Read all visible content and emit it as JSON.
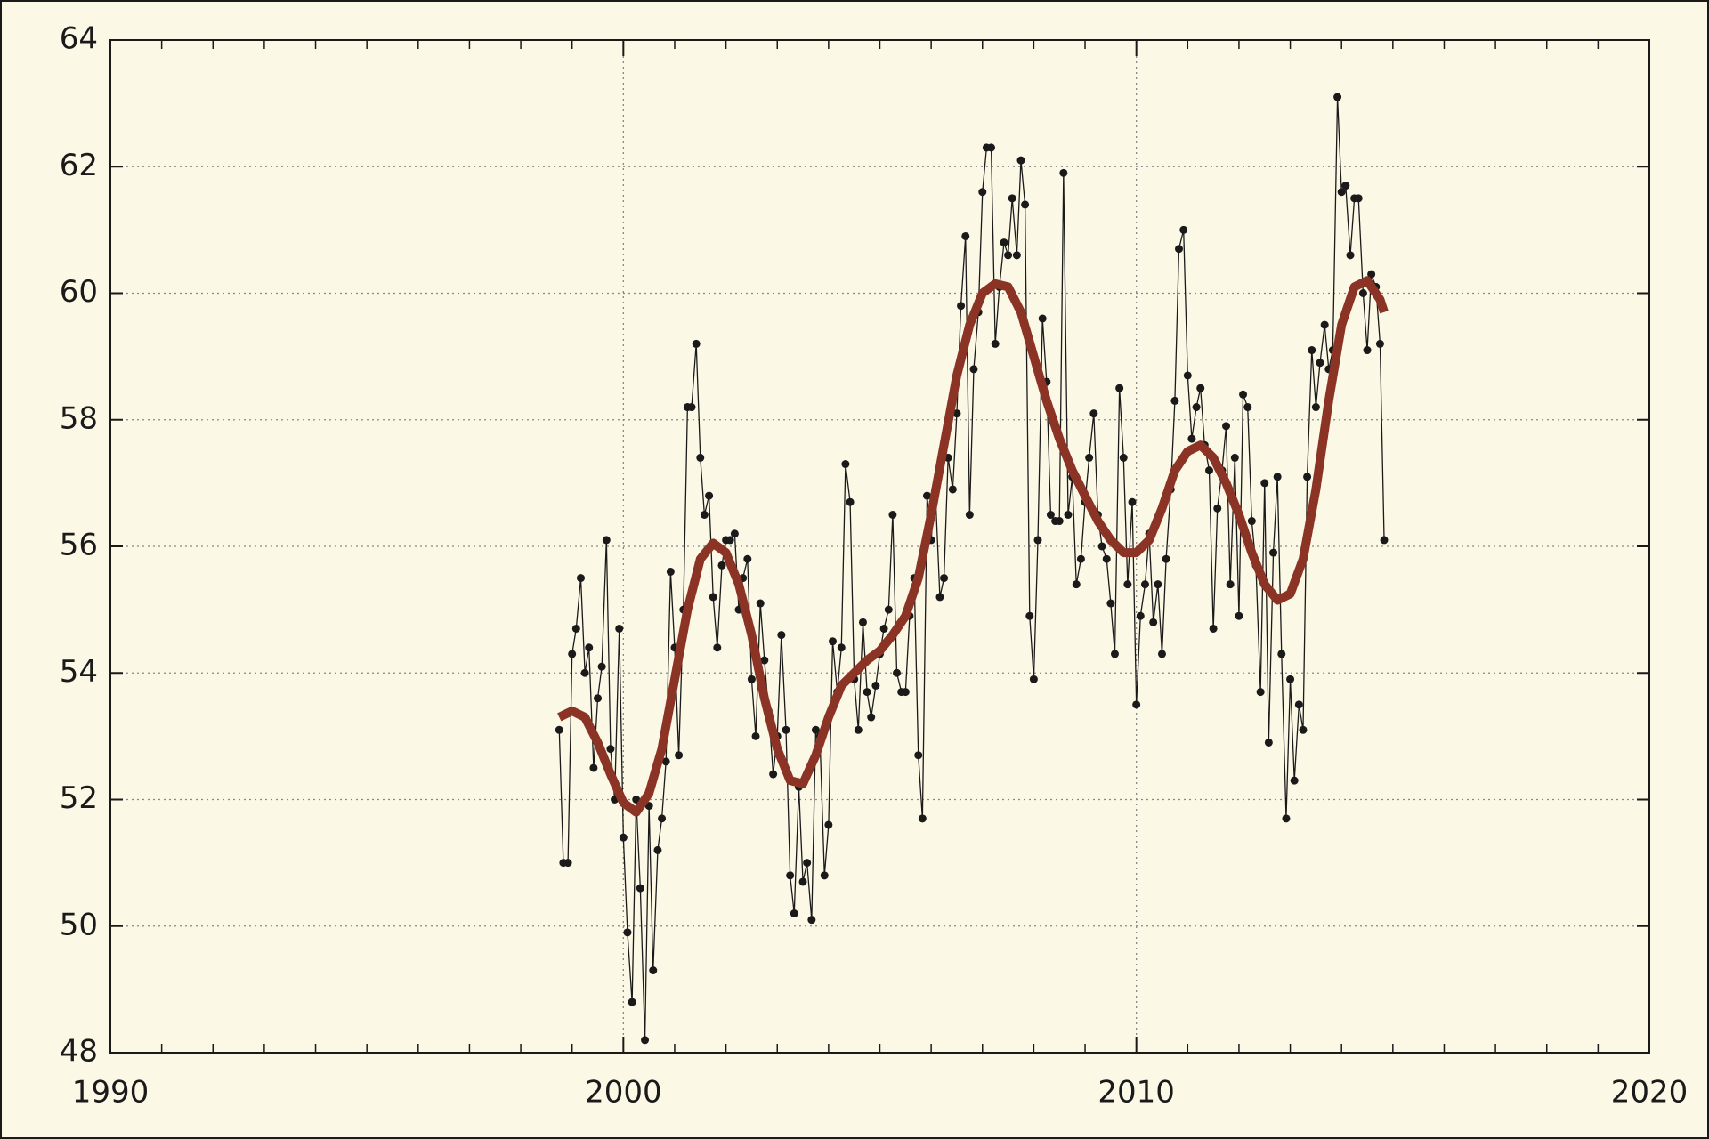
{
  "chart_data": {
    "type": "line",
    "xlim": [
      1990,
      2020
    ],
    "xticks": [
      1990,
      2000,
      2010,
      2020
    ],
    "xminorticks": [
      1991,
      1992,
      1993,
      1994,
      1995,
      1996,
      1997,
      1998,
      1999,
      2001,
      2002,
      2003,
      2004,
      2005,
      2006,
      2007,
      2008,
      2009,
      2011,
      2012,
      2013,
      2014,
      2015,
      2016,
      2017,
      2018,
      2019
    ],
    "ylim": [
      48,
      64
    ],
    "yticks": [
      48,
      50,
      52,
      54,
      56,
      58,
      60,
      62,
      64
    ],
    "grid": true,
    "background": "#fcf8e6",
    "series": [
      {
        "color": "#1a1a1a",
        "marker": "circle",
        "x": [
          1998.75,
          1998.83,
          1998.92,
          1999.0,
          1999.08,
          1999.17,
          1999.25,
          1999.33,
          1999.42,
          1999.5,
          1999.58,
          1999.67,
          1999.75,
          1999.83,
          1999.92,
          2000.0,
          2000.08,
          2000.17,
          2000.25,
          2000.33,
          2000.42,
          2000.5,
          2000.58,
          2000.67,
          2000.75,
          2000.83,
          2000.92,
          2001.0,
          2001.08,
          2001.17,
          2001.25,
          2001.33,
          2001.42,
          2001.5,
          2001.58,
          2001.67,
          2001.75,
          2001.83,
          2001.92,
          2002.0,
          2002.08,
          2002.17,
          2002.25,
          2002.33,
          2002.42,
          2002.5,
          2002.58,
          2002.67,
          2002.75,
          2002.83,
          2002.92,
          2003.0,
          2003.08,
          2003.17,
          2003.25,
          2003.33,
          2003.42,
          2003.5,
          2003.58,
          2003.67,
          2003.75,
          2003.83,
          2003.92,
          2004.0,
          2004.08,
          2004.17,
          2004.25,
          2004.33,
          2004.42,
          2004.5,
          2004.58,
          2004.67,
          2004.75,
          2004.83,
          2004.92,
          2005.0,
          2005.08,
          2005.17,
          2005.25,
          2005.33,
          2005.42,
          2005.5,
          2005.58,
          2005.67,
          2005.75,
          2005.83,
          2005.92,
          2006.0,
          2006.08,
          2006.17,
          2006.25,
          2006.33,
          2006.42,
          2006.5,
          2006.58,
          2006.67,
          2006.75,
          2006.83,
          2006.92,
          2007.0,
          2007.08,
          2007.17,
          2007.25,
          2007.33,
          2007.42,
          2007.5,
          2007.58,
          2007.67,
          2007.75,
          2007.83,
          2007.92,
          2008.0,
          2008.08,
          2008.17,
          2008.25,
          2008.33,
          2008.42,
          2008.5,
          2008.58,
          2008.67,
          2008.75,
          2008.83,
          2008.92,
          2009.0,
          2009.08,
          2009.17,
          2009.25,
          2009.33,
          2009.42,
          2009.5,
          2009.58,
          2009.67,
          2009.75,
          2009.83,
          2009.92,
          2010.0,
          2010.08,
          2010.17,
          2010.25,
          2010.33,
          2010.42,
          2010.5,
          2010.58,
          2010.67,
          2010.75,
          2010.83,
          2010.92,
          2011.0,
          2011.08,
          2011.17,
          2011.25,
          2011.33,
          2011.42,
          2011.5,
          2011.58,
          2011.67,
          2011.75,
          2011.83,
          2011.92,
          2012.0,
          2012.08,
          2012.17,
          2012.25,
          2012.33,
          2012.42,
          2012.5,
          2012.58,
          2012.67,
          2012.75,
          2012.83,
          2012.92,
          2013.0,
          2013.08,
          2013.17,
          2013.25,
          2013.33,
          2013.42,
          2013.5,
          2013.58,
          2013.67,
          2013.75,
          2013.83,
          2013.92,
          2014.0,
          2014.08,
          2014.17,
          2014.25,
          2014.33,
          2014.42,
          2014.5,
          2014.58,
          2014.67,
          2014.75,
          2014.83
        ],
        "values": [
          53.1,
          51.0,
          51.0,
          54.3,
          54.7,
          55.5,
          54.0,
          54.4,
          52.5,
          53.6,
          54.1,
          56.1,
          52.8,
          52.0,
          54.7,
          51.4,
          49.9,
          48.8,
          52.0,
          50.6,
          48.2,
          51.9,
          49.3,
          51.2,
          51.7,
          52.6,
          55.6,
          54.4,
          52.7,
          55.0,
          58.2,
          58.2,
          59.2,
          57.4,
          56.5,
          56.8,
          55.2,
          54.4,
          55.7,
          56.1,
          56.1,
          56.2,
          55.0,
          55.5,
          55.8,
          53.9,
          53.0,
          55.1,
          54.2,
          53.4,
          52.4,
          53.0,
          54.6,
          53.1,
          50.8,
          50.2,
          52.2,
          50.7,
          51.0,
          50.1,
          53.1,
          53.0,
          50.8,
          51.6,
          54.5,
          53.7,
          54.4,
          57.3,
          56.7,
          53.9,
          53.1,
          54.8,
          53.7,
          53.3,
          53.8,
          54.3,
          54.7,
          55.0,
          56.5,
          54.0,
          53.7,
          53.7,
          54.9,
          55.5,
          52.7,
          51.7,
          56.8,
          56.1,
          56.9,
          55.2,
          55.5,
          57.4,
          56.9,
          58.1,
          59.8,
          60.9,
          56.5,
          58.8,
          59.7,
          61.6,
          62.3,
          62.3,
          59.2,
          60.1,
          60.8,
          60.6,
          61.5,
          60.6,
          62.1,
          61.4,
          54.9,
          53.9,
          56.1,
          59.6,
          58.6,
          56.5,
          56.4,
          56.4,
          61.9,
          56.5,
          57.1,
          55.4,
          55.8,
          56.7,
          57.4,
          58.1,
          56.5,
          56.0,
          55.8,
          55.1,
          54.3,
          58.5,
          57.4,
          55.4,
          56.7,
          53.5,
          54.9,
          55.4,
          56.2,
          54.8,
          55.4,
          54.3,
          55.8,
          56.9,
          58.3,
          60.7,
          61.0,
          58.7,
          57.7,
          58.2,
          58.5,
          57.6,
          57.2,
          54.7,
          56.6,
          57.2,
          57.9,
          55.4,
          57.4,
          54.9,
          58.4,
          58.2,
          56.4,
          55.7,
          53.7,
          57.0,
          52.9,
          55.9,
          57.1,
          54.3,
          51.7,
          53.9,
          52.3,
          53.5,
          53.1,
          57.1,
          59.1,
          58.2,
          58.9,
          59.5,
          58.8,
          59.1,
          63.1,
          61.6,
          61.7,
          60.6,
          61.5,
          61.5,
          60.0,
          59.1,
          60.3,
          60.1,
          59.2,
          56.1
        ]
      },
      {
        "color": "#8b3426",
        "marker": "none",
        "x": [
          1998.75,
          1999.0,
          1999.25,
          1999.5,
          1999.75,
          2000.0,
          2000.25,
          2000.5,
          2000.75,
          2001.0,
          2001.25,
          2001.5,
          2001.75,
          2002.0,
          2002.25,
          2002.5,
          2002.75,
          2003.0,
          2003.25,
          2003.5,
          2003.75,
          2004.0,
          2004.25,
          2004.5,
          2004.75,
          2005.0,
          2005.25,
          2005.5,
          2005.75,
          2006.0,
          2006.25,
          2006.5,
          2006.75,
          2007.0,
          2007.25,
          2007.5,
          2007.75,
          2008.0,
          2008.25,
          2008.5,
          2008.75,
          2009.0,
          2009.25,
          2009.5,
          2009.75,
          2010.0,
          2010.25,
          2010.5,
          2010.75,
          2011.0,
          2011.25,
          2011.5,
          2011.75,
          2012.0,
          2012.25,
          2012.5,
          2012.75,
          2013.0,
          2013.25,
          2013.5,
          2013.75,
          2014.0,
          2014.25,
          2014.5,
          2014.75,
          2014.83
        ],
        "values": [
          53.3,
          53.4,
          53.3,
          52.9,
          52.4,
          51.95,
          51.8,
          52.1,
          52.8,
          53.9,
          55.0,
          55.8,
          56.05,
          55.9,
          55.4,
          54.6,
          53.6,
          52.8,
          52.3,
          52.25,
          52.7,
          53.3,
          53.8,
          54.0,
          54.2,
          54.35,
          54.6,
          54.9,
          55.5,
          56.5,
          57.6,
          58.7,
          59.5,
          60.0,
          60.15,
          60.1,
          59.7,
          59.0,
          58.3,
          57.7,
          57.2,
          56.8,
          56.4,
          56.1,
          55.9,
          55.9,
          56.1,
          56.6,
          57.2,
          57.5,
          57.6,
          57.4,
          57.0,
          56.5,
          55.9,
          55.4,
          55.15,
          55.25,
          55.8,
          56.9,
          58.3,
          59.5,
          60.1,
          60.2,
          59.9,
          59.7
        ]
      }
    ]
  }
}
